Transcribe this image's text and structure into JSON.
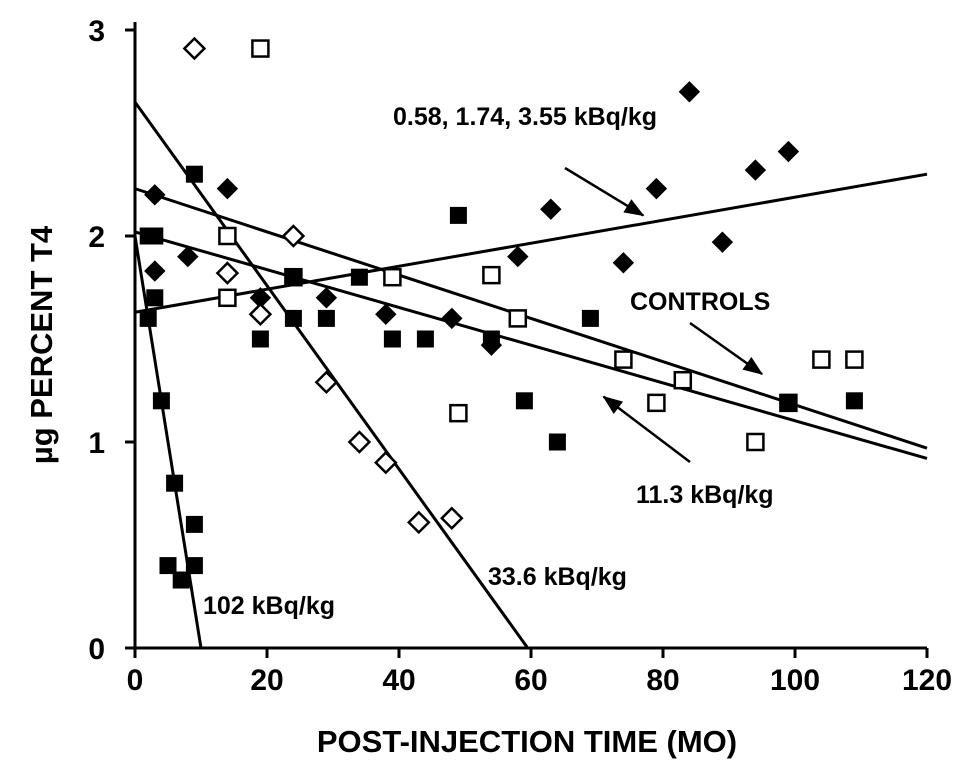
{
  "chart_data": {
    "type": "scatter",
    "title": "",
    "xlabel": "POST-INJECTION TIME (MO)",
    "ylabel": "µg PERCENT T4",
    "xlim": [
      0,
      120
    ],
    "ylim": [
      0,
      3
    ],
    "x_ticks": [
      0,
      20,
      40,
      60,
      80,
      100,
      120
    ],
    "y_ticks": [
      0,
      1,
      2,
      3
    ],
    "grid": false,
    "series": [
      {
        "marker": "diamond-filled",
        "points": [
          [
            3,
            2.2
          ],
          [
            3,
            1.83
          ],
          [
            8,
            1.9
          ],
          [
            14,
            2.23
          ],
          [
            19,
            1.7
          ],
          [
            29,
            1.7
          ],
          [
            38,
            1.62
          ],
          [
            48,
            1.6
          ],
          [
            54,
            1.47
          ],
          [
            58,
            1.9
          ],
          [
            63,
            2.13
          ],
          [
            74,
            1.87
          ],
          [
            79,
            2.23
          ],
          [
            84,
            2.7
          ],
          [
            89,
            1.97
          ],
          [
            94,
            2.32
          ],
          [
            99,
            2.41
          ]
        ]
      },
      {
        "marker": "square-open",
        "points": [
          [
            19,
            2.91
          ],
          [
            14,
            2.0
          ],
          [
            14,
            1.7
          ],
          [
            24,
            1.8
          ],
          [
            39,
            1.8
          ],
          [
            54,
            1.81
          ],
          [
            58,
            1.6
          ],
          [
            49,
            1.14
          ],
          [
            74,
            1.4
          ],
          [
            79,
            1.19
          ],
          [
            83,
            1.3
          ],
          [
            94,
            1.0
          ],
          [
            99,
            1.19
          ],
          [
            104,
            1.4
          ],
          [
            109,
            1.4
          ]
        ]
      },
      {
        "marker": "square-filled",
        "points": [
          [
            2,
            2.0
          ],
          [
            3,
            2.0
          ],
          [
            3,
            1.7
          ],
          [
            2,
            1.6
          ],
          [
            9,
            2.3
          ],
          [
            19,
            1.5
          ],
          [
            24,
            1.8
          ],
          [
            24,
            1.6
          ],
          [
            29,
            1.6
          ],
          [
            34,
            1.8
          ],
          [
            39,
            1.5
          ],
          [
            44,
            1.5
          ],
          [
            49,
            2.1
          ],
          [
            54,
            1.5
          ],
          [
            59,
            1.2
          ],
          [
            64,
            1.0
          ],
          [
            69,
            1.6
          ],
          [
            99,
            1.19
          ],
          [
            109,
            1.2
          ]
        ]
      },
      {
        "marker": "diamond-open",
        "points": [
          [
            9,
            2.91
          ],
          [
            14,
            1.82
          ],
          [
            19,
            1.62
          ],
          [
            24,
            2.0
          ],
          [
            29,
            1.29
          ],
          [
            34,
            1.0
          ],
          [
            38,
            0.9
          ],
          [
            43,
            0.61
          ],
          [
            48,
            0.63
          ]
        ]
      },
      {
        "marker": "square-filled",
        "points": [
          [
            4,
            1.2
          ],
          [
            6,
            0.8
          ],
          [
            5,
            0.4
          ],
          [
            7,
            0.33
          ],
          [
            9,
            0.6
          ],
          [
            9,
            0.4
          ]
        ]
      }
    ],
    "regression_lines": [
      {
        "label": "0.58, 1.74, 3.55 kBq/kg",
        "start": [
          0,
          1.63
        ],
        "end": [
          120,
          2.3
        ]
      },
      {
        "label": "CONTROLS",
        "start": [
          0,
          2.23
        ],
        "end": [
          120,
          0.97
        ]
      },
      {
        "label": "11.3 kBq/kg",
        "start": [
          0,
          2.02
        ],
        "end": [
          120,
          0.92
        ]
      },
      {
        "label": "33.6 kBq/kg",
        "start": [
          0,
          2.65
        ],
        "end": [
          59.5,
          0
        ]
      },
      {
        "label": "102 kBq/kg",
        "start": [
          0,
          2.0
        ],
        "end": [
          10,
          0
        ]
      }
    ],
    "annotations": [
      {
        "text": "0.58, 1.74, 3.55 kBq/kg",
        "arrow_to": [
          77,
          2.1
        ]
      },
      {
        "text": "CONTROLS",
        "arrow_to": [
          95,
          1.33
        ]
      },
      {
        "text": "11.3 kBq/kg",
        "arrow_to": [
          71,
          1.22
        ]
      },
      {
        "text": "33.6 kBq/kg"
      },
      {
        "text": "102 kBq/kg"
      }
    ]
  }
}
